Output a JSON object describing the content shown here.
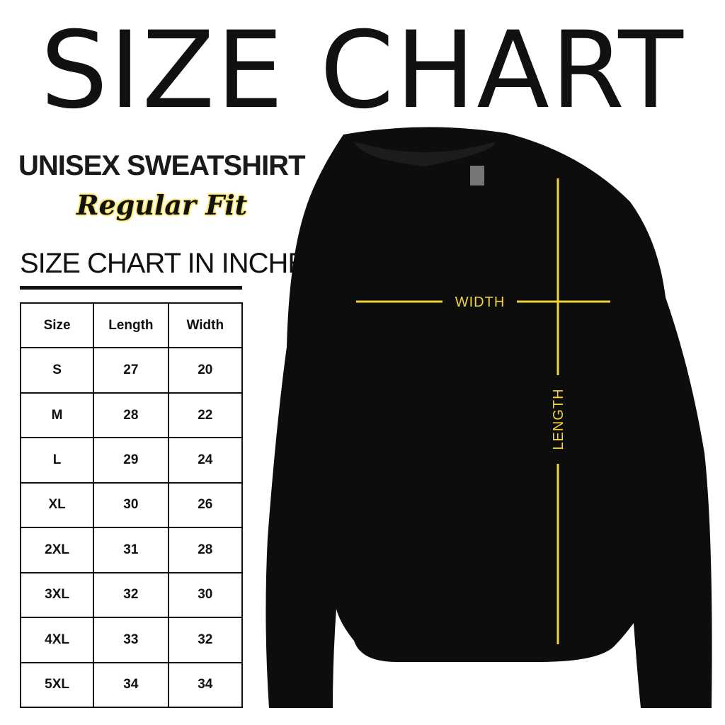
{
  "title": "SIZE CHART",
  "product": "UNISEX SWEATSHIRT",
  "fit": "Regular Fit",
  "table_title": "SIZE CHART IN INCHES",
  "table": {
    "headers": [
      "Size",
      "Length",
      "Width"
    ],
    "rows": [
      [
        "S",
        "27",
        "20"
      ],
      [
        "M",
        "28",
        "22"
      ],
      [
        "L",
        "29",
        "24"
      ],
      [
        "XL",
        "30",
        "26"
      ],
      [
        "2XL",
        "31",
        "28"
      ],
      [
        "3XL",
        "32",
        "30"
      ],
      [
        "4XL",
        "33",
        "32"
      ],
      [
        "5XL",
        "34",
        "34"
      ]
    ]
  },
  "diagram": {
    "width_label": "WIDTH",
    "length_label": "LENGTH",
    "line_color": "#f2d33c",
    "garment_color": "#0d0d0d"
  }
}
